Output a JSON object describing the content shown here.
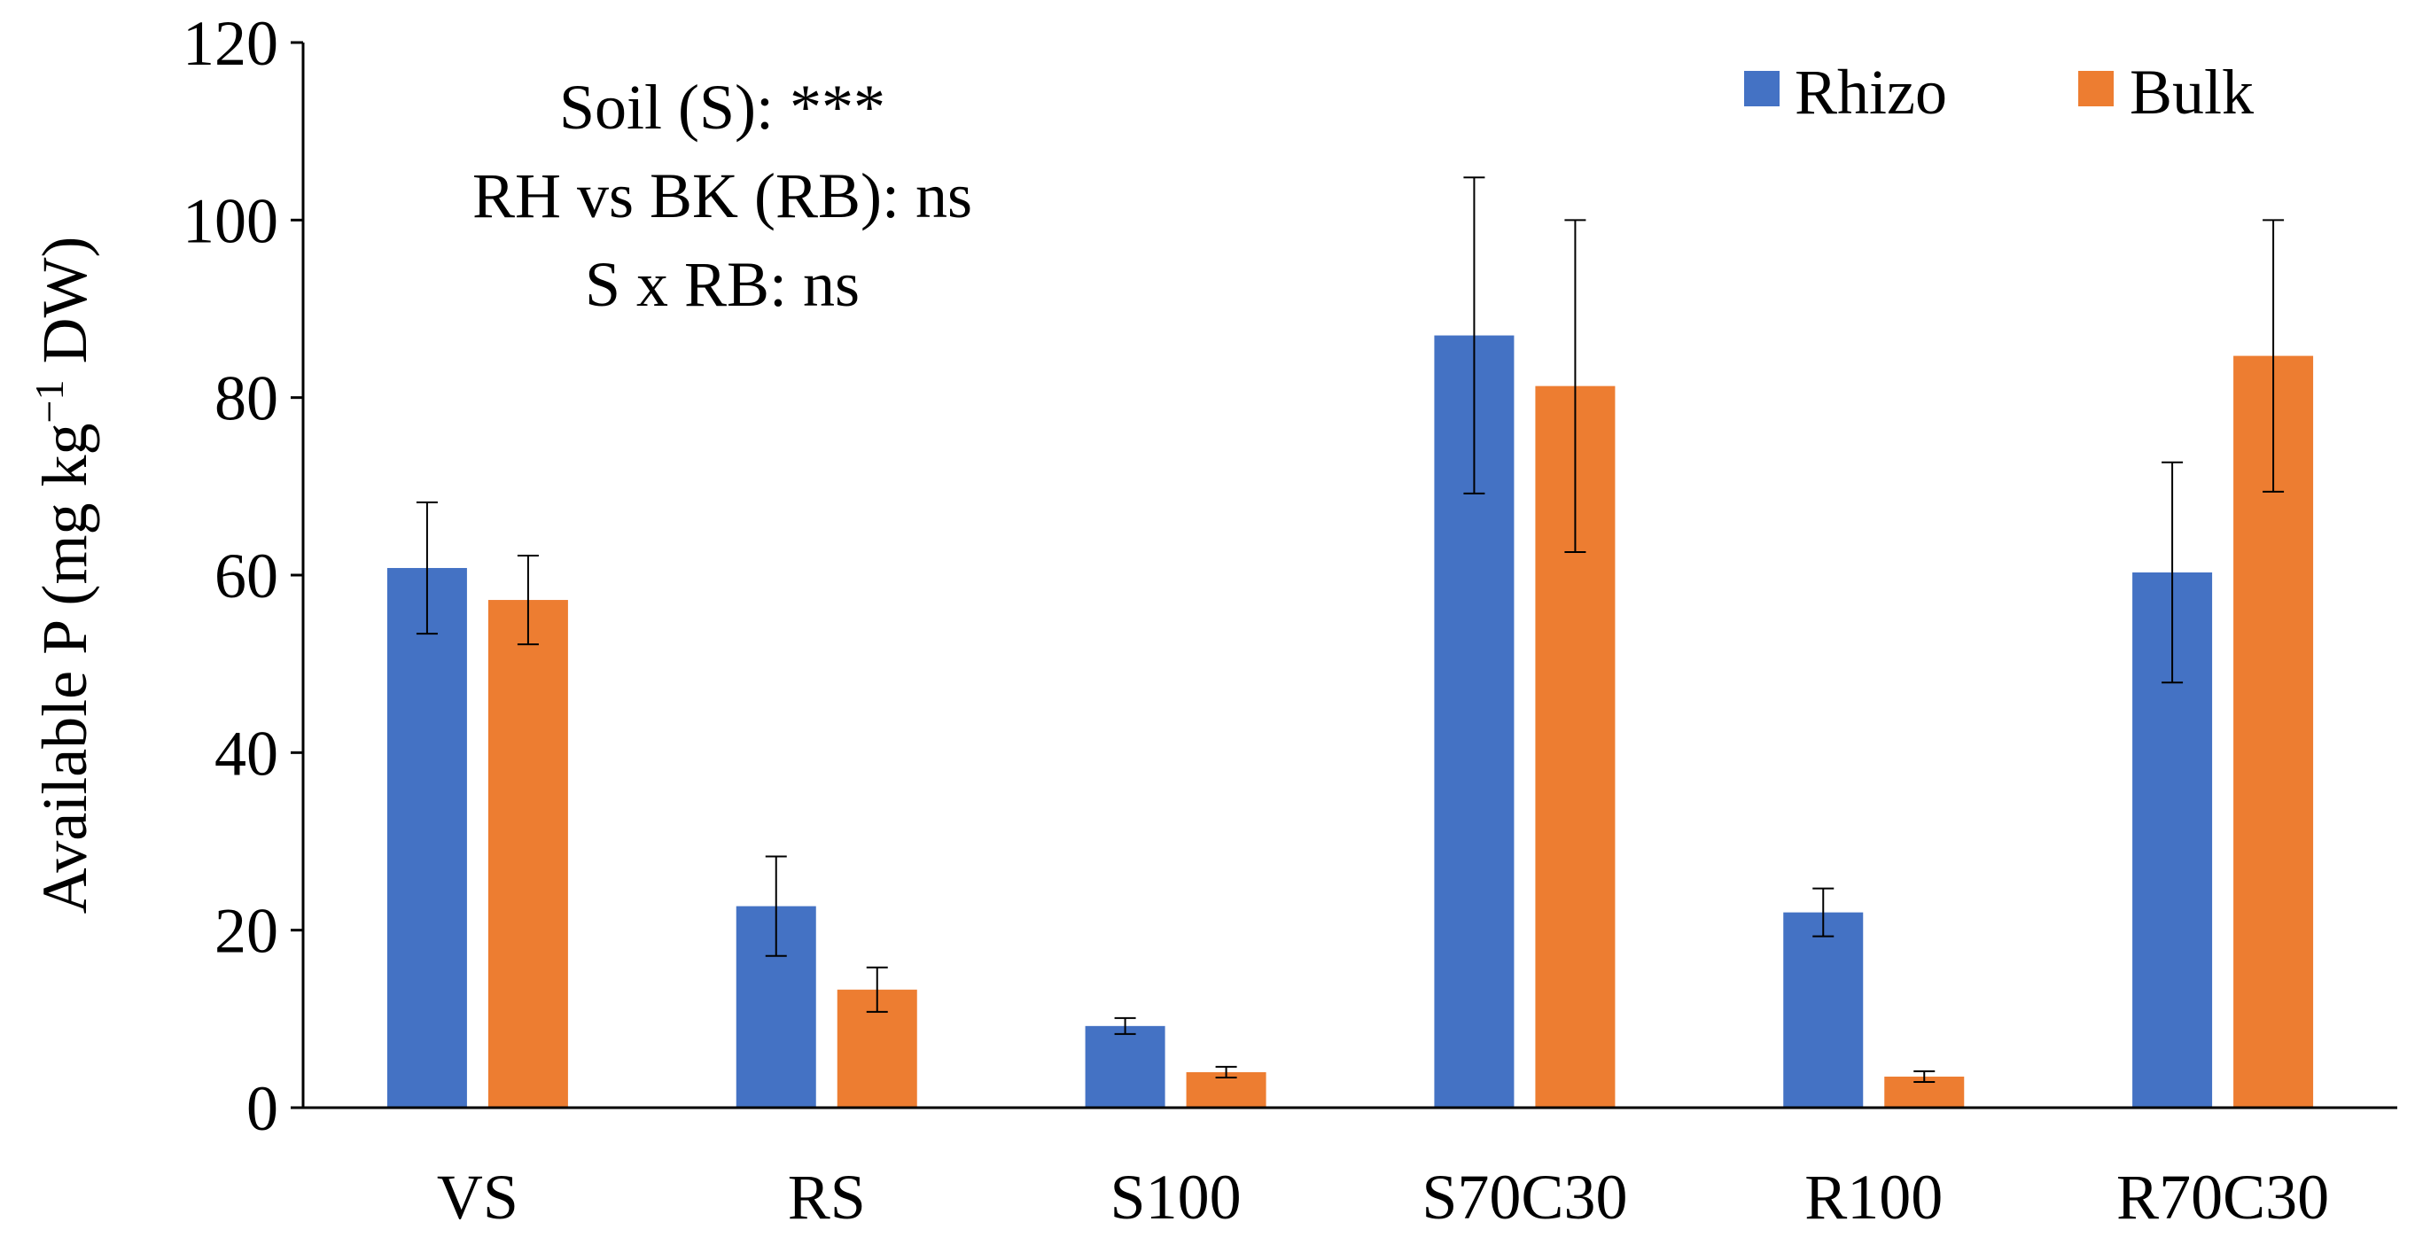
{
  "chart_data": {
    "type": "bar",
    "title": "",
    "xlabel": "",
    "ylabel": {
      "main": "Available P (mg kg",
      "superscript": "−1",
      "tail": " DW)"
    },
    "ylim": [
      0,
      120
    ],
    "yticks": [
      0,
      20,
      40,
      60,
      80,
      100,
      120
    ],
    "grid": false,
    "legend_position": "top-right",
    "categories": [
      "VS",
      "RS",
      "S100",
      "S70C30",
      "R100",
      "R70C30"
    ],
    "series": [
      {
        "name": "Rhizo",
        "color": "#4472C4",
        "values": [
          60.8,
          22.7,
          9.2,
          87.0,
          22.0,
          60.3
        ],
        "errors": [
          7.4,
          5.6,
          0.9,
          17.8,
          2.7,
          12.4
        ]
      },
      {
        "name": "Bulk",
        "color": "#ED7D31",
        "values": [
          57.2,
          13.3,
          4.0,
          81.3,
          3.5,
          84.7
        ],
        "errors": [
          5.0,
          2.5,
          0.6,
          18.7,
          0.6,
          15.3
        ]
      }
    ],
    "annotations": [
      "Soil (S): ***",
      "RH vs BK (RB): ns",
      "S x RB: ns"
    ]
  }
}
